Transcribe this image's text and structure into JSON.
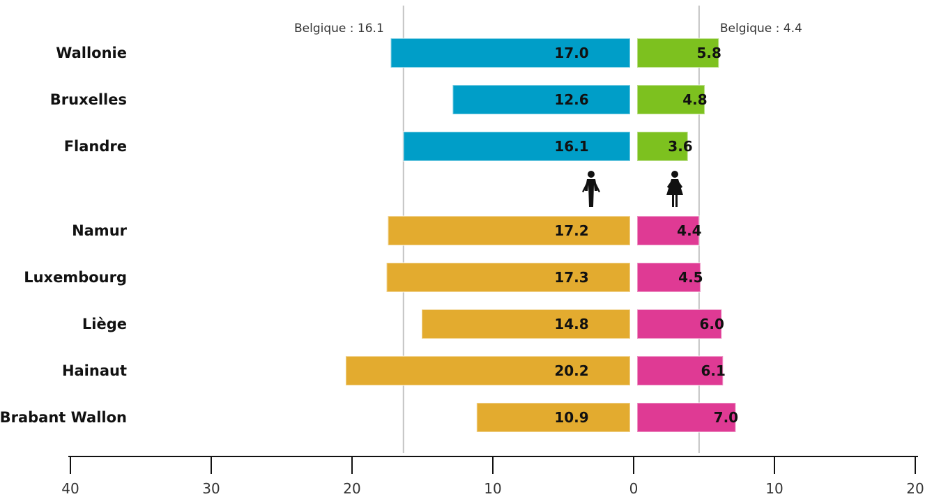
{
  "chart_data": {
    "type": "bar",
    "orientation": "horizontal",
    "layout": "diverging",
    "x_axis": {
      "ticks": [
        "40",
        "30",
        "20",
        "10",
        "0",
        "10",
        "20"
      ],
      "range_left": [
        40,
        0
      ],
      "range_right": [
        0,
        20
      ]
    },
    "reference_lines": [
      {
        "side": "left",
        "value": 16.1,
        "label": "Belgique : 16.1"
      },
      {
        "side": "right",
        "value": 4.4,
        "label": "Belgique : 4.4"
      }
    ],
    "icons": [
      {
        "side": "left",
        "icon": "male-figure-icon"
      },
      {
        "side": "right",
        "icon": "female-figure-icon"
      }
    ],
    "groups": [
      {
        "name": "regions",
        "categories": [
          "Wallonie",
          "Bruxelles",
          "Flandre"
        ],
        "series": [
          {
            "side": "left",
            "color": "#009ec8",
            "values": [
              17.0,
              12.6,
              16.1
            ],
            "labels": [
              "17.0",
              "12.6",
              "16.1"
            ]
          },
          {
            "side": "right",
            "color": "#7dc11f",
            "values": [
              5.8,
              4.8,
              3.6
            ],
            "labels": [
              "5.8",
              "4.8",
              "3.6"
            ]
          }
        ]
      },
      {
        "name": "provinces",
        "categories": [
          "Namur",
          "Luxembourg",
          "Liège",
          "Hainaut",
          "Brabant Wallon"
        ],
        "series": [
          {
            "side": "left",
            "color": "#e3ab2f",
            "values": [
              17.2,
              17.3,
              14.8,
              20.2,
              10.9
            ],
            "labels": [
              "17.2",
              "17.3",
              "14.8",
              "20.2",
              "10.9"
            ]
          },
          {
            "side": "right",
            "color": "#df3a94",
            "values": [
              4.4,
              4.5,
              6.0,
              6.1,
              7.0
            ],
            "labels": [
              "4.4",
              "4.5",
              "6.0",
              "6.1",
              "7.0"
            ]
          }
        ]
      }
    ]
  }
}
